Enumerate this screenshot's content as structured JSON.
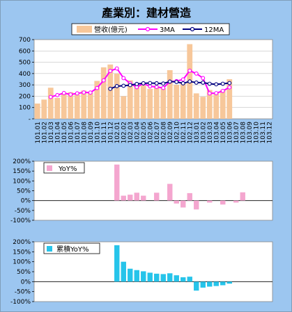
{
  "chart_data": [
    {
      "type": "bar",
      "title": "產業別：建材營造",
      "categories": [
        "101.01",
        "101.02",
        "101.03",
        "101.04",
        "101.05",
        "101.06",
        "101.07",
        "101.08",
        "101.09",
        "101.10",
        "101.11",
        "101.12",
        "102.01",
        "102.02",
        "102.03",
        "102.04",
        "102.05",
        "102.06",
        "102.07",
        "102.08",
        "102.09",
        "102.10",
        "102.11",
        "102.12",
        "103.01",
        "103.02",
        "103.03",
        "103.04",
        "103.05",
        "103.06",
        "103.07",
        "103.08",
        "103.09",
        "103.10",
        "103.11",
        "103.12"
      ],
      "ylim": [
        0,
        700
      ],
      "yticks": [
        "-",
        "100",
        "200",
        "300",
        "400",
        "500",
        "600",
        "700"
      ],
      "series": [
        {
          "name": "營收(億元)",
          "kind": "bar",
          "color": "#f7c79a",
          "values": [
            135,
            170,
            275,
            185,
            225,
            235,
            215,
            250,
            230,
            335,
            455,
            480,
            400,
            200,
            340,
            300,
            295,
            265,
            285,
            270,
            430,
            300,
            315,
            660,
            225,
            195,
            255,
            230,
            255,
            350,
            null,
            null,
            null,
            null,
            null,
            null
          ]
        },
        {
          "name": "3MA",
          "kind": "line",
          "color": "#ff00ff",
          "values": [
            null,
            null,
            193,
            210,
            228,
            215,
            225,
            233,
            232,
            272,
            340,
            423,
            445,
            360,
            313,
            280,
            312,
            287,
            282,
            273,
            328,
            333,
            348,
            425,
            400,
            360,
            225,
            227,
            247,
            278,
            null,
            null,
            null,
            null,
            null,
            null
          ]
        },
        {
          "name": "12MA",
          "kind": "line",
          "color": "#000080",
          "values": [
            null,
            null,
            null,
            null,
            null,
            null,
            null,
            null,
            null,
            null,
            null,
            265,
            289,
            292,
            298,
            308,
            314,
            316,
            314,
            312,
            329,
            326,
            314,
            330,
            320,
            320,
            310,
            305,
            310,
            316,
            null,
            null,
            null,
            null,
            null,
            null
          ]
        }
      ]
    },
    {
      "type": "bar",
      "legend": "YoY%",
      "ylim": [
        -100,
        200
      ],
      "yticks": [
        "-100%",
        "-50%",
        "0%",
        "50%",
        "100%",
        "150%",
        "200%"
      ],
      "series": [
        {
          "name": "YoY%",
          "color": "#f4a6cf",
          "values": [
            null,
            null,
            null,
            null,
            null,
            null,
            null,
            null,
            null,
            null,
            null,
            null,
            183,
            25,
            30,
            40,
            25,
            null,
            40,
            null,
            85,
            -15,
            -35,
            38,
            -45,
            null,
            -10,
            null,
            -20,
            null,
            -10,
            42,
            null,
            null,
            null,
            null
          ]
        }
      ]
    },
    {
      "type": "bar",
      "legend": "累積YoY%",
      "ylim": [
        -100,
        200
      ],
      "yticks": [
        "-100%",
        "-50%",
        "0%",
        "50%",
        "100%",
        "150%",
        "200%"
      ],
      "series": [
        {
          "name": "累積YoY%",
          "color": "#26c4ea",
          "values": [
            null,
            null,
            null,
            null,
            null,
            null,
            null,
            null,
            null,
            null,
            null,
            null,
            183,
            100,
            65,
            58,
            52,
            45,
            40,
            38,
            42,
            32,
            22,
            25,
            -45,
            -30,
            -25,
            -22,
            -18,
            -10,
            null,
            null,
            null,
            null,
            null,
            null
          ]
        }
      ]
    }
  ]
}
